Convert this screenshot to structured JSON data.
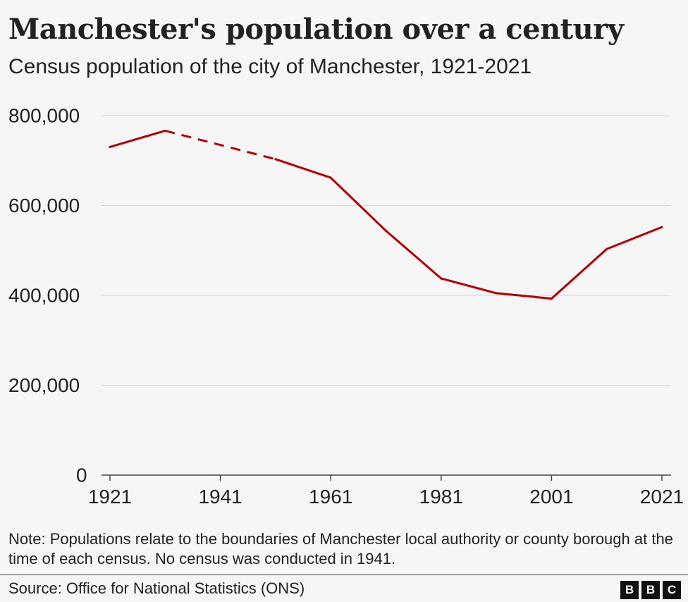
{
  "header": {
    "title": "Manchester's population over a century",
    "subtitle": "Census population of the city of Manchester, 1921-2021"
  },
  "footer": {
    "note": "Note: Populations relate to the boundaries of Manchester local authority or county borough at the time of each census. No census was conducted in 1941.",
    "source": "Source: Office for National Statistics (ONS)",
    "logo_letters": [
      "B",
      "B",
      "C"
    ]
  },
  "colors": {
    "line": "#b80000",
    "grid": "#d6d6d6",
    "axis": "#444444",
    "text": "#222222",
    "background": "#f6f6f6"
  },
  "chart_data": {
    "type": "line",
    "title": "Manchester's population over a century",
    "subtitle": "Census population of the city of Manchester, 1921-2021",
    "xlabel": "",
    "ylabel": "",
    "x_ticks": [
      1921,
      1941,
      1961,
      1981,
      2001,
      2021
    ],
    "y_ticks": [
      0,
      200000,
      400000,
      600000,
      800000
    ],
    "y_tick_labels": [
      "0",
      "200,000",
      "400,000",
      "600,000",
      "800,000"
    ],
    "xlim": [
      1921,
      2021
    ],
    "ylim": [
      0,
      800000
    ],
    "grid": true,
    "legend": "none",
    "series": [
      {
        "x": [
          1921,
          1931,
          1951,
          1961,
          1971,
          1981,
          1991,
          2001,
          2011,
          2021
        ],
        "y": [
          730307,
          766311,
          703082,
          661791,
          543650,
          437660,
          404861,
          392819,
          503127,
          552000
        ],
        "dashed_segments": [
          [
            1931,
            1951
          ]
        ]
      }
    ]
  }
}
